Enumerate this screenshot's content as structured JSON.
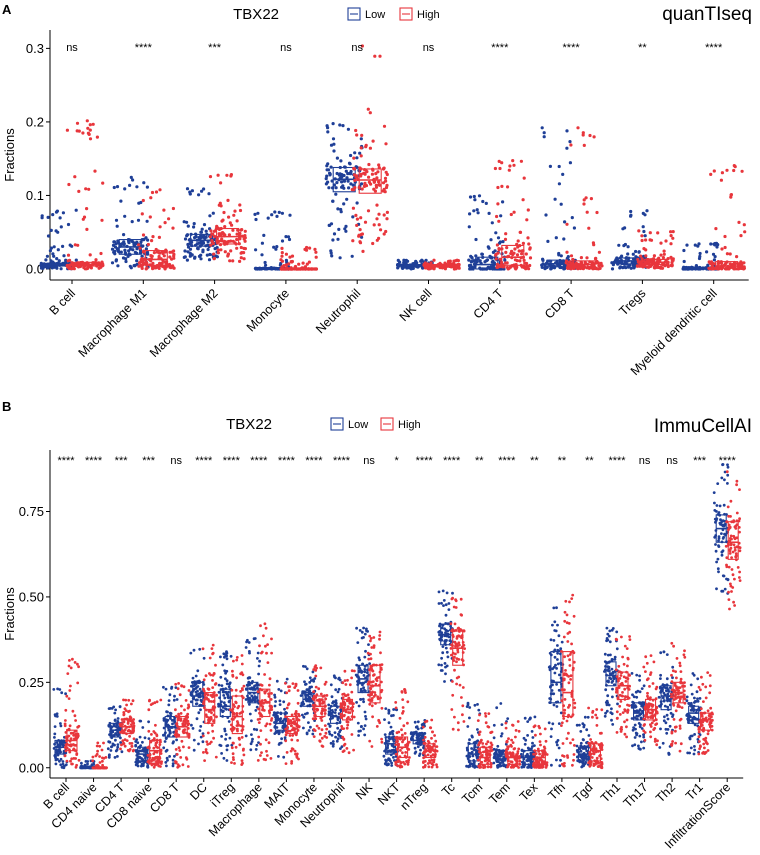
{
  "chart_data": [
    {
      "type": "box",
      "panel": "A",
      "title": "quanTIseq",
      "legend_title": "TBX22",
      "legend": [
        {
          "name": "Low",
          "color": "#1F3F97"
        },
        {
          "name": "High",
          "color": "#E8363C"
        }
      ],
      "xlabel": "",
      "ylabel": "Fractions",
      "ylim": [
        -0.015,
        0.325
      ],
      "yticks": [
        "0.0",
        "0.1",
        "0.2",
        "0.3"
      ],
      "ytick_values": [
        0,
        0.1,
        0.2,
        0.3
      ],
      "categories": [
        "B cell",
        "Macrophage M1",
        "Macrophage M2",
        "Monocyte",
        "Neutrophil",
        "NK cell",
        "CD4 T",
        "CD8 T",
        "Tregs",
        "Myeloid dendritic cell"
      ],
      "significance": [
        "ns",
        "****",
        "***",
        "ns",
        "ns",
        "ns",
        "****",
        "****",
        "**",
        "****"
      ],
      "series": [
        {
          "name": "Low",
          "boxes": [
            {
              "q1": 0.004,
              "median": 0.006,
              "q3": 0.008,
              "low": 0.0,
              "high": 0.08
            },
            {
              "q1": 0.02,
              "median": 0.03,
              "q3": 0.04,
              "low": 0.0,
              "high": 0.126
            },
            {
              "q1": 0.031,
              "median": 0.039,
              "q3": 0.047,
              "low": 0.012,
              "high": 0.11
            },
            {
              "q1": 0.0,
              "median": 0.0,
              "q3": 0.001,
              "low": 0.0,
              "high": 0.078
            },
            {
              "q1": 0.105,
              "median": 0.122,
              "q3": 0.138,
              "low": 0.015,
              "high": 0.198
            },
            {
              "q1": 0.003,
              "median": 0.005,
              "q3": 0.006,
              "low": 0.0,
              "high": 0.012
            },
            {
              "q1": 0.0,
              "median": 0.006,
              "q3": 0.016,
              "low": 0.0,
              "high": 0.1
            },
            {
              "q1": 0.003,
              "median": 0.007,
              "q3": 0.012,
              "low": 0.0,
              "high": 0.205
            },
            {
              "q1": 0.007,
              "median": 0.011,
              "q3": 0.015,
              "low": 0.0,
              "high": 0.08
            },
            {
              "q1": 0.0,
              "median": 0.0,
              "q3": 0.002,
              "low": 0.0,
              "high": 0.035
            }
          ]
        },
        {
          "name": "High",
          "boxes": [
            {
              "q1": 0.004,
              "median": 0.006,
              "q3": 0.009,
              "low": 0.0,
              "high": 0.203
            },
            {
              "q1": 0.005,
              "median": 0.013,
              "q3": 0.025,
              "low": 0.0,
              "high": 0.108
            },
            {
              "q1": 0.034,
              "median": 0.044,
              "q3": 0.055,
              "low": 0.01,
              "high": 0.131
            },
            {
              "q1": 0.0,
              "median": 0.0,
              "q3": 0.0,
              "low": 0.0,
              "high": 0.03
            },
            {
              "q1": 0.103,
              "median": 0.121,
              "q3": 0.136,
              "low": 0.022,
              "high": 0.31
            },
            {
              "q1": 0.003,
              "median": 0.005,
              "q3": 0.006,
              "low": 0.0,
              "high": 0.012
            },
            {
              "q1": 0.005,
              "median": 0.016,
              "q3": 0.032,
              "low": 0.0,
              "high": 0.152
            },
            {
              "q1": 0.002,
              "median": 0.006,
              "q3": 0.011,
              "low": 0.0,
              "high": 0.192
            },
            {
              "q1": 0.006,
              "median": 0.009,
              "q3": 0.013,
              "low": 0.0,
              "high": 0.055
            },
            {
              "q1": 0.001,
              "median": 0.004,
              "q3": 0.01,
              "low": 0.0,
              "high": 0.146
            }
          ]
        }
      ]
    },
    {
      "type": "box",
      "panel": "B",
      "title": "ImmuCellAI",
      "legend_title": "TBX22",
      "legend": [
        {
          "name": "Low",
          "color": "#1F3F97"
        },
        {
          "name": "High",
          "color": "#E8363C"
        }
      ],
      "xlabel": "",
      "ylabel": "Fractions",
      "ylim": [
        -0.03,
        0.93
      ],
      "yticks": [
        "0.00",
        "0.25",
        "0.50",
        "0.75"
      ],
      "ytick_values": [
        0,
        0.25,
        0.5,
        0.75
      ],
      "categories": [
        "B cell",
        "CD4 naive",
        "CD4 T",
        "CD8 naive",
        "CD8 T",
        "DC",
        "iTreg",
        "Macrophage",
        "MAIT",
        "Monocyte",
        "Neutrophil",
        "NK",
        "NKT",
        "nTreg",
        "Tc",
        "Tcm",
        "Tem",
        "Tex",
        "Tfh",
        "Tgd",
        "Th1",
        "Th17",
        "Th2",
        "Tr1",
        "InfiltrationScore"
      ],
      "significance": [
        "****",
        "****",
        "***",
        "***",
        "ns",
        "****",
        "****",
        "****",
        "****",
        "****",
        "****",
        "ns",
        "*",
        "****",
        "****",
        "**",
        "****",
        "**",
        "**",
        "**",
        "****",
        "ns",
        "ns",
        "***",
        "****"
      ],
      "series": [
        {
          "name": "Low",
          "boxes": [
            {
              "q1": 0.04,
              "median": 0.06,
              "q3": 0.08,
              "low": 0.0,
              "high": 0.24
            },
            {
              "q1": 0.0,
              "median": 0.0,
              "q3": 0.003,
              "low": 0.0,
              "high": 0.02
            },
            {
              "q1": 0.09,
              "median": 0.11,
              "q3": 0.13,
              "low": 0.03,
              "high": 0.18
            },
            {
              "q1": 0.02,
              "median": 0.04,
              "q3": 0.06,
              "low": 0.0,
              "high": 0.14
            },
            {
              "q1": 0.09,
              "median": 0.12,
              "q3": 0.15,
              "low": 0.0,
              "high": 0.24
            },
            {
              "q1": 0.18,
              "median": 0.21,
              "q3": 0.25,
              "low": 0.05,
              "high": 0.35
            },
            {
              "q1": 0.15,
              "median": 0.18,
              "q3": 0.23,
              "low": 0.02,
              "high": 0.34
            },
            {
              "q1": 0.19,
              "median": 0.22,
              "q3": 0.25,
              "low": 0.05,
              "high": 0.39
            },
            {
              "q1": 0.11,
              "median": 0.13,
              "q3": 0.16,
              "low": 0.03,
              "high": 0.26
            },
            {
              "q1": 0.18,
              "median": 0.2,
              "q3": 0.22,
              "low": 0.09,
              "high": 0.3
            },
            {
              "q1": 0.13,
              "median": 0.15,
              "q3": 0.18,
              "low": 0.05,
              "high": 0.27
            },
            {
              "q1": 0.22,
              "median": 0.26,
              "q3": 0.3,
              "low": 0.08,
              "high": 0.41
            },
            {
              "q1": 0.04,
              "median": 0.07,
              "q3": 0.09,
              "low": 0.0,
              "high": 0.18
            },
            {
              "q1": 0.07,
              "median": 0.08,
              "q3": 0.1,
              "low": 0.03,
              "high": 0.14
            },
            {
              "q1": 0.36,
              "median": 0.39,
              "q3": 0.42,
              "low": 0.25,
              "high": 0.52
            },
            {
              "q1": 0.02,
              "median": 0.04,
              "q3": 0.07,
              "low": 0.0,
              "high": 0.19
            },
            {
              "q1": 0.02,
              "median": 0.04,
              "q3": 0.05,
              "low": 0.0,
              "high": 0.19
            },
            {
              "q1": 0.01,
              "median": 0.03,
              "q3": 0.05,
              "low": 0.0,
              "high": 0.15
            },
            {
              "q1": 0.19,
              "median": 0.25,
              "q3": 0.34,
              "low": 0.0,
              "high": 0.47
            },
            {
              "q1": 0.02,
              "median": 0.04,
              "q3": 0.06,
              "low": 0.0,
              "high": 0.15
            },
            {
              "q1": 0.24,
              "median": 0.27,
              "q3": 0.31,
              "low": 0.12,
              "high": 0.41
            },
            {
              "q1": 0.14,
              "median": 0.16,
              "q3": 0.19,
              "low": 0.05,
              "high": 0.28
            },
            {
              "q1": 0.17,
              "median": 0.21,
              "q3": 0.24,
              "low": 0.03,
              "high": 0.34
            },
            {
              "q1": 0.13,
              "median": 0.16,
              "q3": 0.18,
              "low": 0.04,
              "high": 0.28
            },
            {
              "q1": 0.66,
              "median": 0.7,
              "q3": 0.74,
              "low": 0.5,
              "high": 0.9
            }
          ]
        },
        {
          "name": "High",
          "boxes": [
            {
              "q1": 0.05,
              "median": 0.08,
              "q3": 0.11,
              "low": 0.0,
              "high": 0.32
            },
            {
              "q1": 0.0,
              "median": 0.0,
              "q3": 0.0,
              "low": 0.0,
              "high": 0.08
            },
            {
              "q1": 0.1,
              "median": 0.12,
              "q3": 0.14,
              "low": 0.04,
              "high": 0.2
            },
            {
              "q1": 0.02,
              "median": 0.05,
              "q3": 0.08,
              "low": 0.0,
              "high": 0.2
            },
            {
              "q1": 0.09,
              "median": 0.12,
              "q3": 0.15,
              "low": 0.0,
              "high": 0.25
            },
            {
              "q1": 0.13,
              "median": 0.17,
              "q3": 0.22,
              "low": 0.02,
              "high": 0.36
            },
            {
              "q1": 0.1,
              "median": 0.15,
              "q3": 0.21,
              "low": 0.0,
              "high": 0.33
            },
            {
              "q1": 0.15,
              "median": 0.19,
              "q3": 0.23,
              "low": 0.02,
              "high": 0.43
            },
            {
              "q1": 0.1,
              "median": 0.13,
              "q3": 0.15,
              "low": 0.01,
              "high": 0.25
            },
            {
              "q1": 0.15,
              "median": 0.18,
              "q3": 0.21,
              "low": 0.06,
              "high": 0.3
            },
            {
              "q1": 0.14,
              "median": 0.17,
              "q3": 0.2,
              "low": 0.03,
              "high": 0.29
            },
            {
              "q1": 0.19,
              "median": 0.24,
              "q3": 0.3,
              "low": 0.06,
              "high": 0.4
            },
            {
              "q1": 0.03,
              "median": 0.06,
              "q3": 0.09,
              "low": 0.0,
              "high": 0.23
            },
            {
              "q1": 0.03,
              "median": 0.05,
              "q3": 0.07,
              "low": 0.0,
              "high": 0.14
            },
            {
              "q1": 0.3,
              "median": 0.35,
              "q3": 0.4,
              "low": 0.1,
              "high": 0.5
            },
            {
              "q1": 0.01,
              "median": 0.03,
              "q3": 0.06,
              "low": 0.0,
              "high": 0.16
            },
            {
              "q1": 0.01,
              "median": 0.03,
              "q3": 0.04,
              "low": 0.0,
              "high": 0.14
            },
            {
              "q1": 0.01,
              "median": 0.03,
              "q3": 0.05,
              "low": 0.0,
              "high": 0.13
            },
            {
              "q1": 0.15,
              "median": 0.22,
              "q3": 0.34,
              "low": 0.0,
              "high": 0.51
            },
            {
              "q1": 0.02,
              "median": 0.05,
              "q3": 0.07,
              "low": 0.0,
              "high": 0.18
            },
            {
              "q1": 0.2,
              "median": 0.24,
              "q3": 0.28,
              "low": 0.08,
              "high": 0.39
            },
            {
              "q1": 0.14,
              "median": 0.17,
              "q3": 0.2,
              "low": 0.04,
              "high": 0.33
            },
            {
              "q1": 0.19,
              "median": 0.22,
              "q3": 0.25,
              "low": 0.04,
              "high": 0.37
            },
            {
              "q1": 0.11,
              "median": 0.14,
              "q3": 0.16,
              "low": 0.04,
              "high": 0.28
            },
            {
              "q1": 0.61,
              "median": 0.66,
              "q3": 0.72,
              "low": 0.46,
              "high": 0.87
            }
          ]
        }
      ]
    }
  ]
}
